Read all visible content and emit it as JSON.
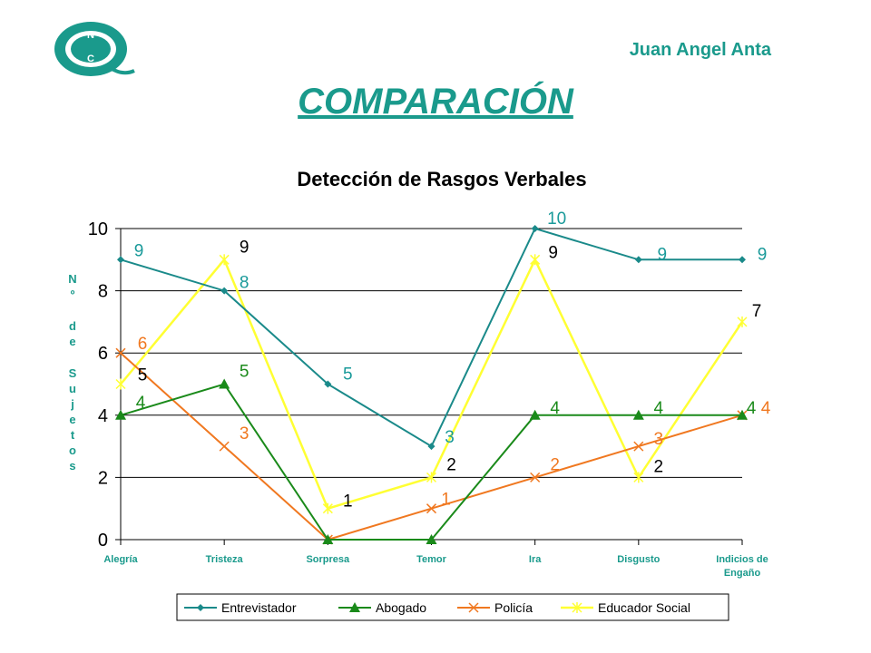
{
  "header": {
    "author": "Juan Angel Anta",
    "title": "COMPARACIÓN",
    "logo_letters": [
      "N",
      "C"
    ]
  },
  "chart_data": {
    "type": "line",
    "title": "Detección de Rasgos Verbales",
    "xlabel": "",
    "ylabel": "Nº de Sujetos",
    "ylim": [
      0,
      10
    ],
    "yticks": [
      "0",
      "2",
      "4",
      "6",
      "8",
      "10"
    ],
    "grid": true,
    "legend_position": "bottom",
    "categories": [
      "Alegría",
      "Tristeza",
      "Sorpresa",
      "Temor",
      "Ira",
      "Disgusto",
      "Indicios de Engaño"
    ],
    "series": [
      {
        "name": "Entrevistador",
        "values": [
          9,
          8,
          5,
          3,
          10,
          9,
          9
        ],
        "color": "#1a8a8a",
        "marker": "diamond",
        "label_color": "#1a9a9a"
      },
      {
        "name": "Abogado",
        "values": [
          4,
          5,
          0,
          0,
          4,
          4,
          4
        ],
        "color": "#1a8a1a",
        "marker": "triangle",
        "label_color": "#1a8a1a"
      },
      {
        "name": "Policía",
        "values": [
          6,
          3,
          0,
          1,
          2,
          3,
          4
        ],
        "color": "#f07820",
        "marker": "x",
        "label_color": "#f07820"
      },
      {
        "name": "Educador Social",
        "values": [
          5,
          9,
          1,
          2,
          9,
          2,
          7
        ],
        "color": "#ffff33",
        "marker": "star",
        "label_color": "#000000"
      }
    ],
    "data_labels": [
      {
        "series": 0,
        "values": [
          "9",
          "8",
          "5",
          "3",
          "10",
          "9",
          "9"
        ]
      },
      {
        "series": 1,
        "values": [
          "4",
          "5",
          "",
          "",
          "4",
          "4",
          "4"
        ]
      },
      {
        "series": 2,
        "values": [
          "6",
          "3",
          "",
          "1",
          "2",
          "3",
          "4"
        ]
      },
      {
        "series": 3,
        "values": [
          "5",
          "9",
          "1",
          "2",
          "9",
          "2",
          "7"
        ]
      }
    ]
  },
  "colors": {
    "accent": "#1a9a8c",
    "grid": "#000000"
  }
}
